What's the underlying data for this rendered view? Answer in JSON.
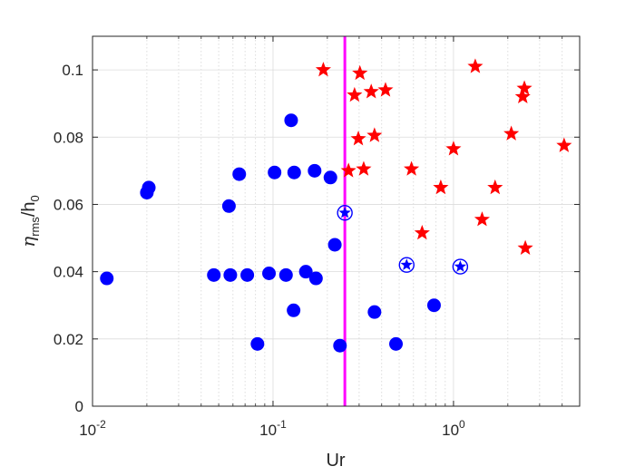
{
  "chart_data": {
    "type": "scatter",
    "xlabel": "Ur",
    "ylabel": {
      "base": "η",
      "sub1": "rms",
      "mid": "/h",
      "sub2": "0"
    },
    "xscale": "log",
    "xlim": [
      0.01,
      5
    ],
    "ylim": [
      0,
      0.11
    ],
    "x_ticks": [
      {
        "value": 0.01,
        "base": "10",
        "exp": "-2"
      },
      {
        "value": 0.1,
        "base": "10",
        "exp": "-1"
      },
      {
        "value": 1,
        "base": "10",
        "exp": "0"
      }
    ],
    "y_ticks": [
      {
        "value": 0,
        "label": "0"
      },
      {
        "value": 0.02,
        "label": "0.02"
      },
      {
        "value": 0.04,
        "label": "0.04"
      },
      {
        "value": 0.06,
        "label": "0.06"
      },
      {
        "value": 0.08,
        "label": "0.08"
      },
      {
        "value": 0.1,
        "label": "0.1"
      }
    ],
    "grid": true,
    "threshold_line": {
      "x": 0.25,
      "color": "#ff00ff"
    },
    "series": [
      {
        "marker": "circle",
        "color": "#0000ff",
        "points": [
          {
            "x": 0.012,
            "y": 0.038
          },
          {
            "x": 0.02,
            "y": 0.0635
          },
          {
            "x": 0.0205,
            "y": 0.065
          },
          {
            "x": 0.047,
            "y": 0.039
          },
          {
            "x": 0.057,
            "y": 0.0595
          },
          {
            "x": 0.058,
            "y": 0.039
          },
          {
            "x": 0.065,
            "y": 0.069
          },
          {
            "x": 0.072,
            "y": 0.039
          },
          {
            "x": 0.082,
            "y": 0.0185
          },
          {
            "x": 0.095,
            "y": 0.0395
          },
          {
            "x": 0.102,
            "y": 0.0695
          },
          {
            "x": 0.118,
            "y": 0.039
          },
          {
            "x": 0.126,
            "y": 0.085
          },
          {
            "x": 0.13,
            "y": 0.0285
          },
          {
            "x": 0.131,
            "y": 0.0695
          },
          {
            "x": 0.152,
            "y": 0.04
          },
          {
            "x": 0.17,
            "y": 0.07
          },
          {
            "x": 0.173,
            "y": 0.038
          },
          {
            "x": 0.208,
            "y": 0.068
          },
          {
            "x": 0.22,
            "y": 0.048
          },
          {
            "x": 0.235,
            "y": 0.018
          },
          {
            "x": 0.365,
            "y": 0.028
          },
          {
            "x": 0.48,
            "y": 0.0185
          },
          {
            "x": 0.78,
            "y": 0.03
          }
        ]
      },
      {
        "marker": "star",
        "color": "#ff0000",
        "points": [
          {
            "x": 0.19,
            "y": 0.1
          },
          {
            "x": 0.262,
            "y": 0.07
          },
          {
            "x": 0.283,
            "y": 0.0925
          },
          {
            "x": 0.297,
            "y": 0.0795
          },
          {
            "x": 0.303,
            "y": 0.099
          },
          {
            "x": 0.318,
            "y": 0.0705
          },
          {
            "x": 0.35,
            "y": 0.0935
          },
          {
            "x": 0.365,
            "y": 0.0805
          },
          {
            "x": 0.42,
            "y": 0.094
          },
          {
            "x": 0.585,
            "y": 0.0705
          },
          {
            "x": 0.67,
            "y": 0.0515
          },
          {
            "x": 0.85,
            "y": 0.065
          },
          {
            "x": 1.0,
            "y": 0.0765
          },
          {
            "x": 1.32,
            "y": 0.101
          },
          {
            "x": 1.44,
            "y": 0.0555
          },
          {
            "x": 1.7,
            "y": 0.065
          },
          {
            "x": 2.09,
            "y": 0.081
          },
          {
            "x": 2.42,
            "y": 0.092
          },
          {
            "x": 2.47,
            "y": 0.0945
          },
          {
            "x": 2.5,
            "y": 0.047
          },
          {
            "x": 4.1,
            "y": 0.0775
          }
        ]
      },
      {
        "marker": "circled-star",
        "color": "#0000ff",
        "points": [
          {
            "x": 0.25,
            "y": 0.0575
          },
          {
            "x": 0.55,
            "y": 0.042
          },
          {
            "x": 1.09,
            "y": 0.0415
          }
        ]
      }
    ]
  }
}
